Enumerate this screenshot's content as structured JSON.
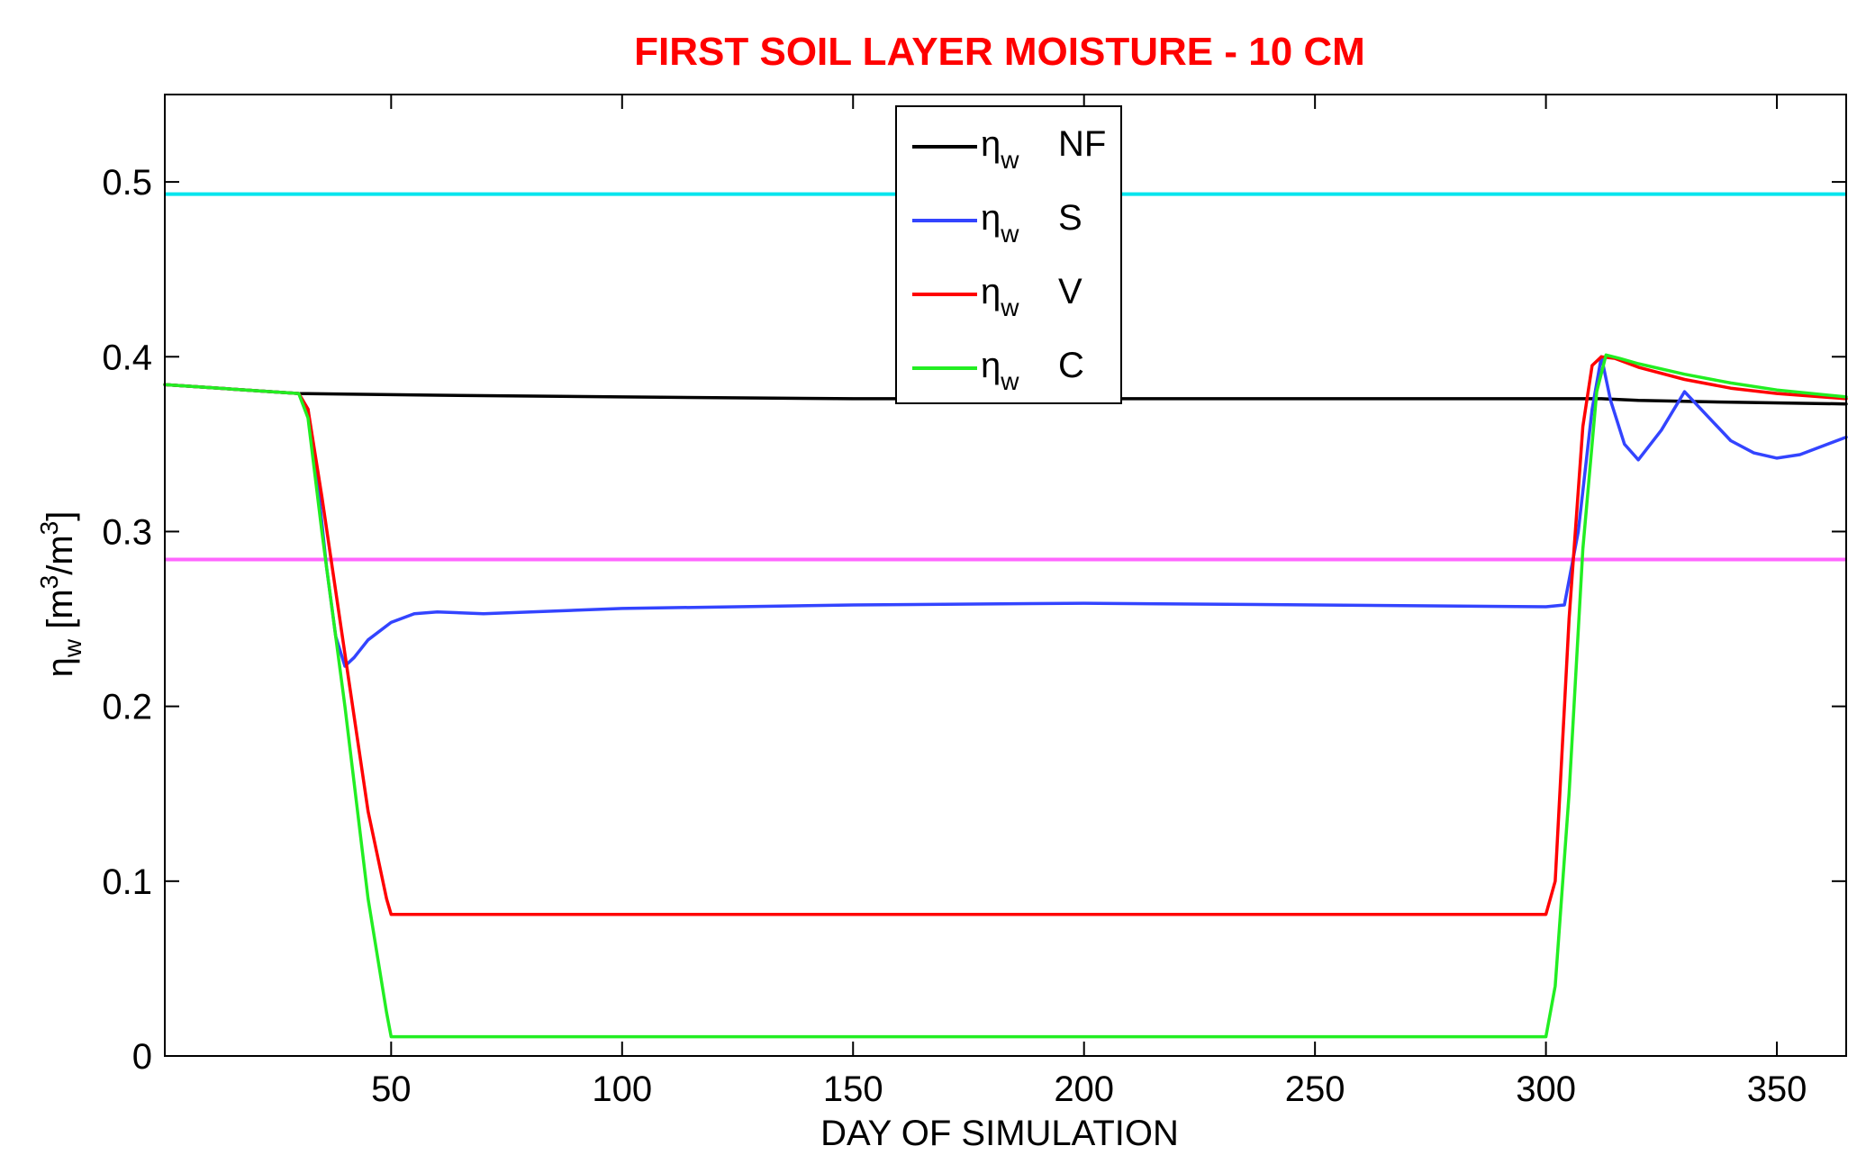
{
  "chart_data": {
    "type": "line",
    "title": "FIRST SOIL LAYER MOISTURE - 10 CM",
    "xlabel": "DAY OF SIMULATION",
    "ylabel": {
      "main": "η",
      "sub": "w",
      "unit_open": " [m",
      "unit_sup1": "3",
      "unit_mid": "/m",
      "unit_sup2": "3",
      "unit_close": "]"
    },
    "xlim": [
      1,
      365
    ],
    "ylim": [
      0,
      0.55
    ],
    "xticks": [
      50,
      100,
      150,
      200,
      250,
      300,
      350
    ],
    "yticks": [
      0,
      0.1,
      0.2,
      0.3,
      0.4,
      0.5
    ],
    "ytick_labels": [
      "0",
      "0.1",
      "0.2",
      "0.3",
      "0.4",
      "0.5"
    ],
    "grid": false,
    "legend_placement": "top-center",
    "colors": {
      "title": "#ff0000",
      "axes": "#000000",
      "background": "#ffffff"
    },
    "reference_lines": [
      {
        "y": 0.493,
        "color": "#00e5ee"
      },
      {
        "y": 0.284,
        "color": "#ff66ff"
      }
    ],
    "series": [
      {
        "name": "NF",
        "legend_symbol": "η",
        "legend_sub": "w",
        "color": "#000000",
        "x": [
          1,
          30,
          60,
          100,
          150,
          200,
          250,
          300,
          312,
          320,
          340,
          365
        ],
        "y": [
          0.384,
          0.379,
          0.378,
          0.377,
          0.376,
          0.376,
          0.376,
          0.376,
          0.376,
          0.375,
          0.374,
          0.373
        ]
      },
      {
        "name": "S",
        "legend_symbol": "η",
        "legend_sub": "w",
        "color": "#3344ff",
        "x": [
          1,
          30,
          32,
          34,
          36,
          38,
          40,
          42,
          45,
          50,
          55,
          60,
          70,
          100,
          150,
          200,
          250,
          300,
          304,
          307,
          310,
          312,
          314,
          317,
          320,
          325,
          330,
          335,
          340,
          345,
          350,
          355,
          360,
          365
        ],
        "y": [
          0.384,
          0.379,
          0.37,
          0.33,
          0.28,
          0.24,
          0.223,
          0.228,
          0.238,
          0.248,
          0.253,
          0.254,
          0.253,
          0.256,
          0.258,
          0.259,
          0.258,
          0.257,
          0.258,
          0.3,
          0.37,
          0.4,
          0.375,
          0.35,
          0.341,
          0.358,
          0.38,
          0.366,
          0.352,
          0.345,
          0.342,
          0.344,
          0.349,
          0.354
        ]
      },
      {
        "name": "V",
        "legend_symbol": "η",
        "legend_sub": "w",
        "color": "#ff0000",
        "x": [
          1,
          30,
          32,
          35,
          40,
          45,
          49,
          50,
          100,
          150,
          200,
          250,
          300,
          302,
          305,
          308,
          310,
          312,
          315,
          320,
          330,
          340,
          350,
          365
        ],
        "y": [
          0.384,
          0.379,
          0.37,
          0.32,
          0.23,
          0.14,
          0.09,
          0.081,
          0.081,
          0.081,
          0.081,
          0.081,
          0.081,
          0.1,
          0.25,
          0.36,
          0.395,
          0.4,
          0.399,
          0.394,
          0.387,
          0.382,
          0.379,
          0.376
        ]
      },
      {
        "name": "C",
        "legend_symbol": "η",
        "legend_sub": "w",
        "color": "#22ee22",
        "x": [
          1,
          30,
          32,
          35,
          40,
          45,
          49,
          50,
          100,
          150,
          200,
          250,
          300,
          302,
          305,
          308,
          311,
          313,
          316,
          320,
          330,
          340,
          350,
          365
        ],
        "y": [
          0.384,
          0.379,
          0.365,
          0.3,
          0.2,
          0.09,
          0.025,
          0.011,
          0.011,
          0.011,
          0.011,
          0.011,
          0.011,
          0.04,
          0.15,
          0.29,
          0.38,
          0.401,
          0.399,
          0.396,
          0.39,
          0.385,
          0.381,
          0.377
        ]
      }
    ]
  }
}
